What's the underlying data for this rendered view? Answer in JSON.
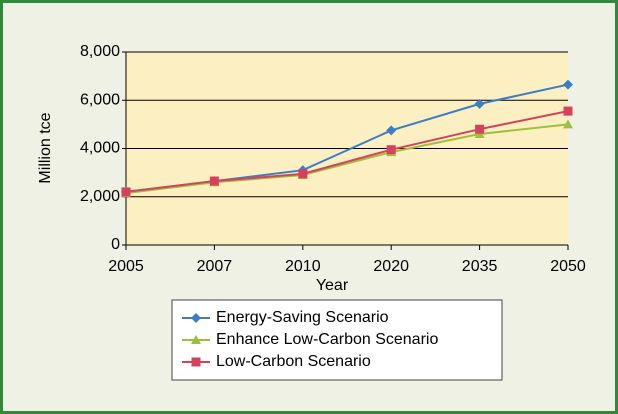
{
  "chart_data": {
    "type": "line",
    "xlabel": "Year",
    "ylabel": "Million tce",
    "categories": [
      "2005",
      "2007",
      "2010",
      "2020",
      "2035",
      "2050"
    ],
    "series": [
      {
        "name": "Energy-Saving Scenario",
        "color": "#3c7ec6",
        "marker": "diamond",
        "values": [
          2200,
          2650,
          3100,
          4750,
          5850,
          6650
        ]
      },
      {
        "name": "Enhance Low-Carbon Scenario",
        "color": "#9cc23c",
        "marker": "triangle",
        "values": [
          2150,
          2600,
          2900,
          3850,
          4600,
          5000
        ]
      },
      {
        "name": "Low-Carbon Scenario",
        "color": "#d6425c",
        "marker": "square",
        "values": [
          2200,
          2650,
          2950,
          3950,
          4800,
          5550
        ]
      }
    ],
    "ylim": [
      0,
      8000
    ],
    "yticks": [
      0,
      {
        "value": 2000,
        "label": "2,000"
      },
      {
        "value": 4000,
        "label": "4,000"
      },
      {
        "value": 6000,
        "label": "6,000"
      },
      {
        "value": 8000,
        "label": "8,000"
      }
    ],
    "grid": true,
    "legend": "bottom"
  }
}
